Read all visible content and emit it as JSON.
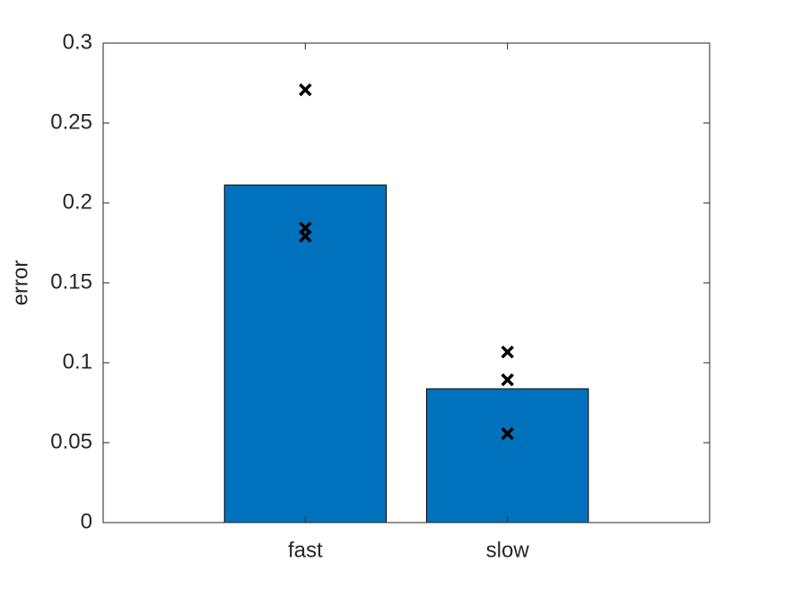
{
  "chart_data": {
    "type": "bar",
    "y_label": "error",
    "categories": [
      "fast",
      "slow"
    ],
    "values": [
      0.2112,
      0.0837
    ],
    "color": "#0072bd",
    "points": [
      [
        0.2708,
        0.1843,
        0.1792
      ],
      [
        0.1067,
        0.0893,
        0.0556
      ]
    ],
    "points_color": "#000000",
    "ylim": [
      0,
      0.3
    ],
    "yticks": [
      0,
      0.05,
      0.1,
      0.15,
      0.2,
      0.25,
      0.3
    ]
  }
}
